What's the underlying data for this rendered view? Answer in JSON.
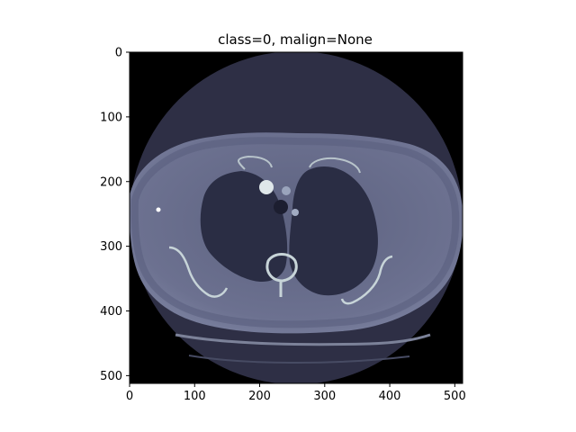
{
  "title": "class=0, malign=None",
  "chart_data": {
    "type": "heatmap",
    "title": "class=0, malign=None",
    "xlabel": "",
    "ylabel": "",
    "xlim": [
      0,
      512
    ],
    "ylim": [
      512,
      0
    ],
    "x_ticks": [
      0,
      100,
      200,
      300,
      400,
      500
    ],
    "y_ticks": [
      0,
      100,
      200,
      300,
      400,
      500
    ],
    "image_size": [
      512,
      512
    ],
    "grid": false,
    "colormap": "bone",
    "content": "axial chest CT slice",
    "background_color": "#000000",
    "fov_color": "#2e2f45",
    "tissue_color": "#6c7190",
    "lung_color": "#2a2d44",
    "bone_color": "#c7d4d8"
  }
}
